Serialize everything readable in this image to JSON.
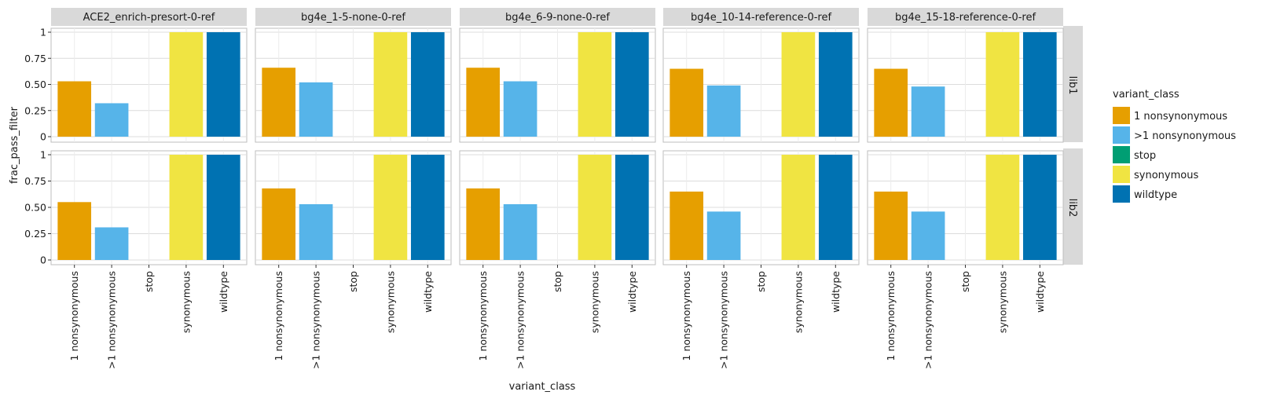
{
  "chart_data": {
    "type": "bar",
    "facet_columns": [
      "ACE2_enrich-presort-0-ref",
      "bg4e_1-5-none-0-ref",
      "bg4e_6-9-none-0-ref",
      "bg4e_10-14-reference-0-ref",
      "bg4e_15-18-reference-0-ref"
    ],
    "facet_rows": [
      "lib1",
      "lib2"
    ],
    "categories": [
      "1 nonsynonymous",
      ">1 nonsynonymous",
      "stop",
      "synonymous",
      "wildtype"
    ],
    "xlabel": "variant_class",
    "ylabel": "frac_pass_filter",
    "ylim": [
      0,
      1
    ],
    "yticks": [
      0,
      0.25,
      0.5,
      0.75,
      1
    ],
    "ytick_labels": [
      "0",
      "0.25",
      "0.50",
      "0.75",
      "1"
    ],
    "grid": true,
    "legend": {
      "title": "variant_class",
      "placement": "right",
      "entries": [
        {
          "label": "1 nonsynonymous",
          "color": "#E69F00"
        },
        {
          "label": ">1 nonsynonymous",
          "color": "#56B4E9"
        },
        {
          "label": "stop",
          "color": "#009E73"
        },
        {
          "label": "synonymous",
          "color": "#F0E442"
        },
        {
          "label": "wildtype",
          "color": "#0072B2"
        }
      ]
    },
    "panels": [
      {
        "column": "ACE2_enrich-presort-0-ref",
        "row": "lib1",
        "values": [
          0.53,
          0.32,
          0,
          1,
          1
        ]
      },
      {
        "column": "bg4e_1-5-none-0-ref",
        "row": "lib1",
        "values": [
          0.66,
          0.52,
          0,
          1,
          1
        ]
      },
      {
        "column": "bg4e_6-9-none-0-ref",
        "row": "lib1",
        "values": [
          0.66,
          0.53,
          0,
          1,
          1
        ]
      },
      {
        "column": "bg4e_10-14-reference-0-ref",
        "row": "lib1",
        "values": [
          0.65,
          0.49,
          0,
          1,
          1
        ]
      },
      {
        "column": "bg4e_15-18-reference-0-ref",
        "row": "lib1",
        "values": [
          0.65,
          0.48,
          0,
          1,
          1
        ]
      },
      {
        "column": "ACE2_enrich-presort-0-ref",
        "row": "lib2",
        "values": [
          0.55,
          0.31,
          0,
          1,
          1
        ]
      },
      {
        "column": "bg4e_1-5-none-0-ref",
        "row": "lib2",
        "values": [
          0.68,
          0.53,
          0,
          1,
          1
        ]
      },
      {
        "column": "bg4e_6-9-none-0-ref",
        "row": "lib2",
        "values": [
          0.68,
          0.53,
          0,
          1,
          1
        ]
      },
      {
        "column": "bg4e_10-14-reference-0-ref",
        "row": "lib2",
        "values": [
          0.65,
          0.46,
          0,
          1,
          1
        ]
      },
      {
        "column": "bg4e_15-18-reference-0-ref",
        "row": "lib2",
        "values": [
          0.65,
          0.46,
          0,
          1,
          1
        ]
      }
    ]
  }
}
